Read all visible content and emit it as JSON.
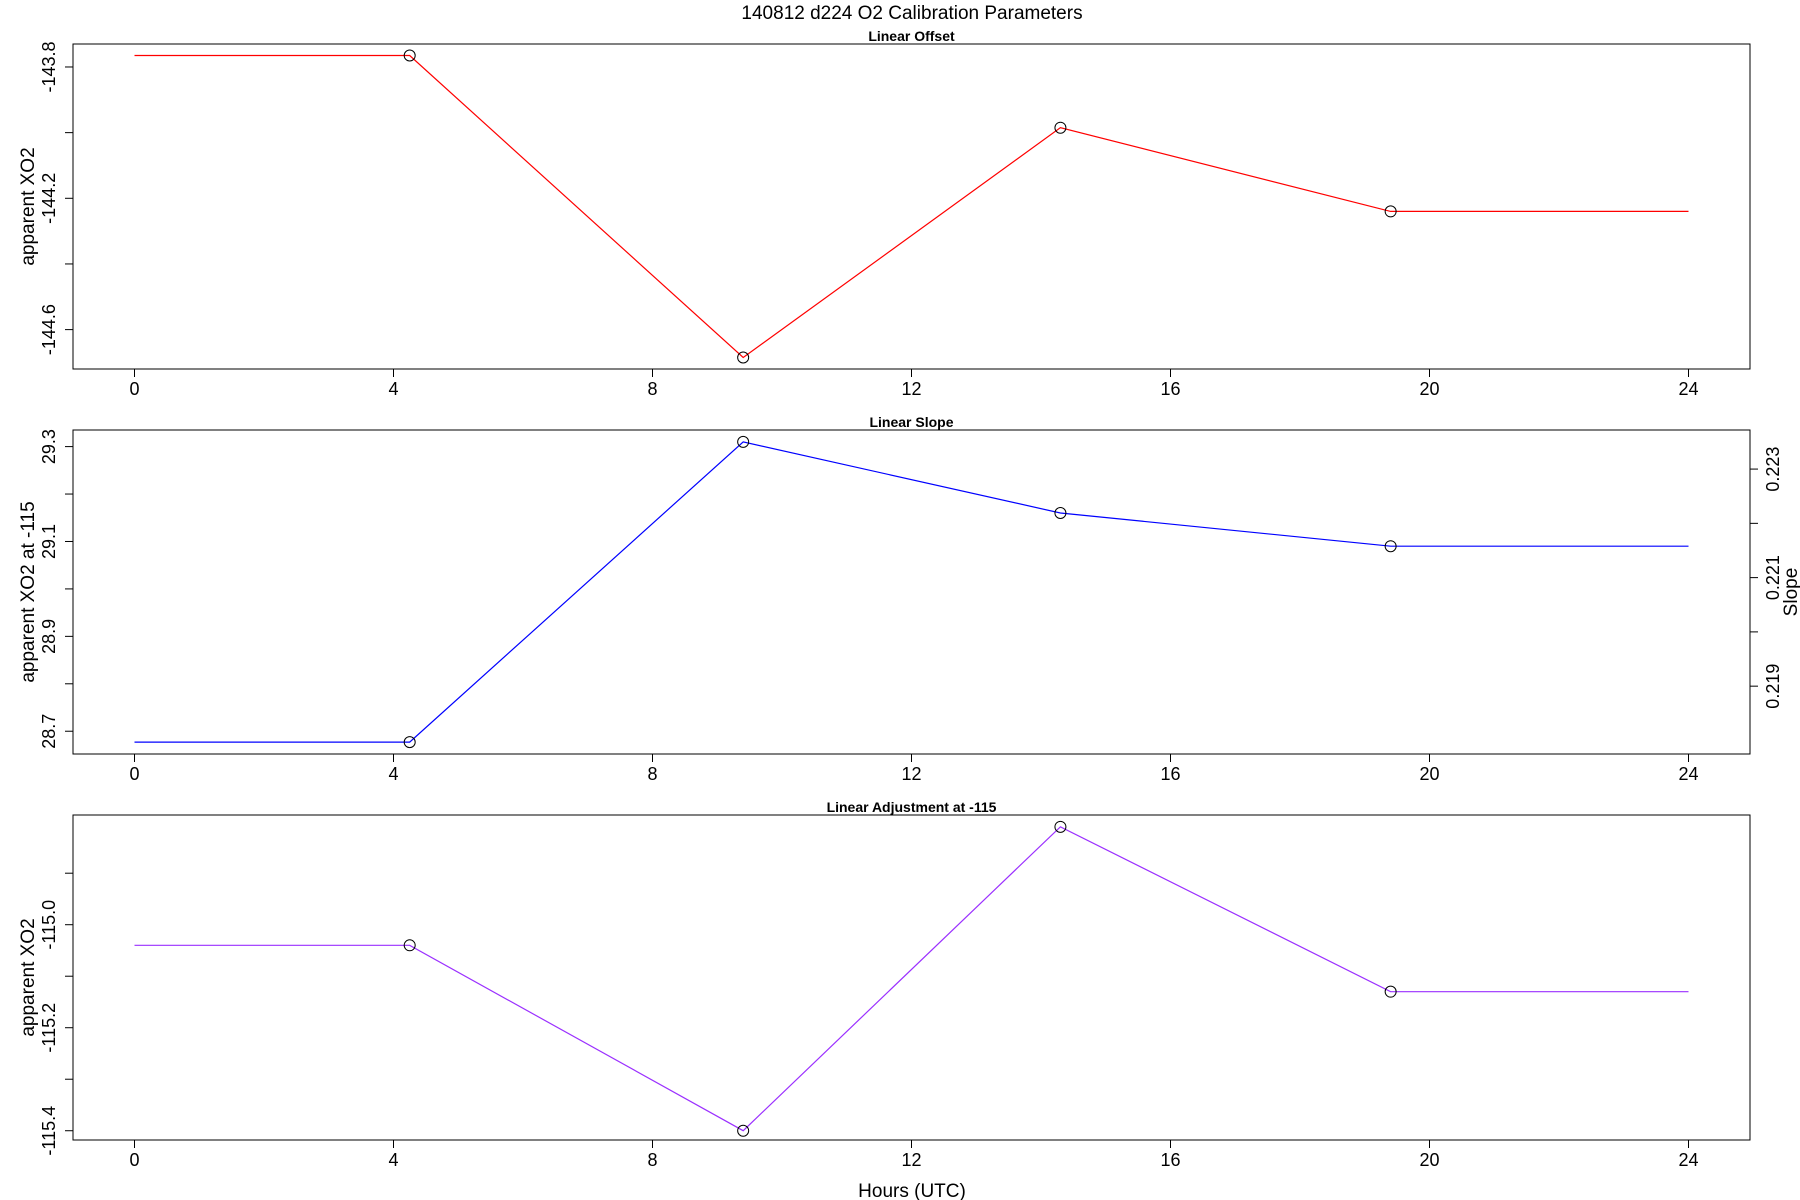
{
  "figure": {
    "title": "140812   d224   O2 Calibration Parameters",
    "xlabel": "Hours (UTC)"
  },
  "chart_data": [
    {
      "type": "line",
      "title": "Linear Offset",
      "ylabel": "apparent XO2",
      "xlabel": "",
      "color": "#ff0000",
      "xlim": [
        -0.95,
        24.95
      ],
      "ylim": [
        -144.72,
        -143.73
      ],
      "xticks": [
        0,
        4,
        8,
        12,
        16,
        20,
        24
      ],
      "yticks": [
        -143.8,
        -144.0,
        -144.2,
        -144.4,
        -144.6
      ],
      "yticks_labeled": [
        -143.8,
        -144.2,
        -144.6
      ],
      "x": [
        0,
        4.25,
        9.4,
        14.3,
        19.4,
        24
      ],
      "y": [
        -143.765,
        -143.765,
        -144.685,
        -143.985,
        -144.24,
        -144.24
      ],
      "markers": [
        1,
        2,
        3,
        4
      ]
    },
    {
      "type": "line",
      "title": "Linear Slope",
      "ylabel": "apparent XO2 at -115",
      "xlabel": "",
      "color": "#0000ff",
      "xlim": [
        -0.95,
        24.95
      ],
      "ylim": [
        28.652,
        29.335
      ],
      "xticks": [
        0,
        4,
        8,
        12,
        16,
        20,
        24
      ],
      "yticks": [
        28.7,
        28.8,
        28.9,
        29.0,
        29.1,
        29.2,
        29.3
      ],
      "yticks_labeled": [
        28.7,
        28.9,
        29.1,
        29.3
      ],
      "x": [
        0,
        4.25,
        9.4,
        14.3,
        19.4,
        24
      ],
      "y": [
        28.677,
        28.677,
        29.31,
        29.16,
        29.09,
        29.09
      ],
      "markers": [
        1,
        2,
        3,
        4
      ],
      "y2label": "Slope",
      "y2lim": [
        0.21775,
        0.22372
      ],
      "y2ticks": [
        0.219,
        0.22,
        0.221,
        0.222,
        0.223
      ],
      "y2ticks_labeled": [
        0.219,
        0.221,
        0.223
      ]
    },
    {
      "type": "line",
      "title": "Linear Adjustment at -115",
      "ylabel": "apparent XO2",
      "xlabel": "Hours (UTC)",
      "color": "#9b30ff",
      "xlim": [
        -0.95,
        24.95
      ],
      "ylim": [
        -115.418,
        -114.787
      ],
      "xticks": [
        0,
        4,
        8,
        12,
        16,
        20,
        24
      ],
      "yticks": [
        -114.9,
        -115.0,
        -115.1,
        -115.2,
        -115.3,
        -115.4
      ],
      "yticks_labeled": [
        -115.0,
        -115.2,
        -115.4
      ],
      "x": [
        0,
        4.25,
        9.4,
        14.3,
        19.4,
        24
      ],
      "y": [
        -115.04,
        -115.04,
        -115.4,
        -114.81,
        -115.13,
        -115.13
      ],
      "markers": [
        1,
        2,
        3,
        4
      ]
    }
  ]
}
